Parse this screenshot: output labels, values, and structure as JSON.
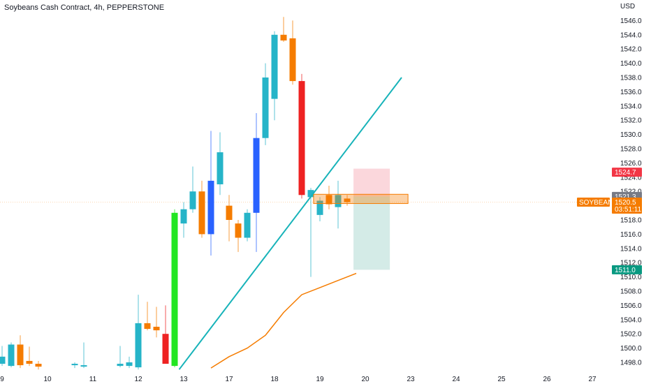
{
  "header": {
    "title": "Soybeans Cash Contract, 4h, PEPPERSTONE"
  },
  "price_axis": {
    "currency": "USD"
  },
  "symbol_tag": {
    "label": "SOYBEANS",
    "price": "1520.5",
    "countdown": "03:51:11"
  },
  "markers": {
    "stop_price": "1524.7",
    "entry_price": "1521.3",
    "target_price": "1511.0"
  },
  "colors": {
    "up": "#26b4c8",
    "down": "#f57c00",
    "impulse_up": "#22e622",
    "impulse_down": "#ee2222",
    "blue_up": "#2962ff",
    "trendline": "#17b3b9",
    "moving_average": "#f57c00",
    "stop_zone": "#fbd3d8",
    "target_zone": "#cfe9e4",
    "stop_tag": "#f23645",
    "target_tag": "#089981",
    "entry_tag": "#787b86"
  },
  "chart_data": {
    "type": "candlestick",
    "title": "Soybeans Cash Contract, 4h, PEPPERSTONE",
    "y_axis": {
      "label": "USD",
      "range": [
        1497,
        1547.5
      ],
      "ticks": [
        1498.0,
        1500.0,
        1502.0,
        1504.0,
        1506.0,
        1508.0,
        1510.0,
        1512.0,
        1514.0,
        1516.0,
        1518.0,
        1520.0,
        1522.0,
        1524.0,
        1526.0,
        1528.0,
        1530.0,
        1532.0,
        1534.0,
        1536.0,
        1538.0,
        1540.0,
        1542.0,
        1544.0,
        1546.0
      ]
    },
    "x_axis": {
      "bar_range": [
        0,
        67
      ],
      "ticks": [
        {
          "label": "9",
          "bar": 0
        },
        {
          "label": "10",
          "bar": 5
        },
        {
          "label": "11",
          "bar": 10
        },
        {
          "label": "12",
          "bar": 15
        },
        {
          "label": "13",
          "bar": 20
        },
        {
          "label": "17",
          "bar": 25
        },
        {
          "label": "18",
          "bar": 30
        },
        {
          "label": "19",
          "bar": 35
        },
        {
          "label": "20",
          "bar": 40
        },
        {
          "label": "23",
          "bar": 45
        },
        {
          "label": "24",
          "bar": 50
        },
        {
          "label": "25",
          "bar": 55
        },
        {
          "label": "26",
          "bar": 60
        },
        {
          "label": "27",
          "bar": 65
        }
      ]
    },
    "candles": [
      {
        "bar": 0,
        "o": 1497.8,
        "h": 1500.3,
        "l": 1497.5,
        "c": 1498.8
      },
      {
        "bar": 1,
        "o": 1497.5,
        "h": 1500.8,
        "l": 1497.3,
        "c": 1500.5
      },
      {
        "bar": 2,
        "o": 1500.5,
        "h": 1501.8,
        "l": 1497.2,
        "c": 1497.6,
        "dir": "down"
      },
      {
        "bar": 3,
        "o": 1498.2,
        "h": 1500.2,
        "l": 1497.5,
        "c": 1497.8,
        "dir": "down"
      },
      {
        "bar": 4,
        "o": 1497.8,
        "h": 1498.2,
        "l": 1497.0,
        "c": 1497.4
      },
      {
        "bar": 8,
        "o": 1497.6,
        "h": 1498.0,
        "l": 1497.2,
        "c": 1497.8
      },
      {
        "bar": 9,
        "o": 1497.4,
        "h": 1500.8,
        "l": 1497.2,
        "c": 1497.6
      },
      {
        "bar": 13,
        "o": 1497.5,
        "h": 1500.3,
        "l": 1497.3,
        "c": 1497.8
      },
      {
        "bar": 14,
        "o": 1497.5,
        "h": 1498.8,
        "l": 1497.2,
        "c": 1498.0
      },
      {
        "bar": 15,
        "o": 1497.3,
        "h": 1507.5,
        "l": 1497.0,
        "c": 1503.5
      },
      {
        "bar": 16,
        "o": 1503.5,
        "h": 1506.5,
        "l": 1502.5,
        "c": 1502.7,
        "dir": "down"
      },
      {
        "bar": 17,
        "o": 1503.0,
        "h": 1505.8,
        "l": 1501.5,
        "c": 1502.5,
        "dir": "down"
      },
      {
        "bar": 18,
        "o": 1502.0,
        "h": 1506.0,
        "l": 1498.0,
        "c": 1497.8,
        "dir": "impulse_down"
      },
      {
        "bar": 19,
        "o": 1497.5,
        "h": 1519.5,
        "l": 1497.3,
        "c": 1519.0,
        "dir": "impulse_up"
      },
      {
        "bar": 20,
        "o": 1517.5,
        "h": 1520.5,
        "l": 1515.5,
        "c": 1519.5
      },
      {
        "bar": 21,
        "o": 1519.5,
        "h": 1525.5,
        "l": 1519.0,
        "c": 1522.0
      },
      {
        "bar": 22,
        "o": 1522.0,
        "h": 1523.5,
        "l": 1515.5,
        "c": 1516.0,
        "dir": "down"
      },
      {
        "bar": 23,
        "o": 1516.0,
        "h": 1530.5,
        "l": 1513.0,
        "c": 1523.5,
        "dir": "blue_up"
      },
      {
        "bar": 24,
        "o": 1523.0,
        "h": 1530.3,
        "l": 1521.5,
        "c": 1527.5
      },
      {
        "bar": 25,
        "o": 1520.0,
        "h": 1521.5,
        "l": 1515.0,
        "c": 1518.0,
        "dir": "down"
      },
      {
        "bar": 26,
        "o": 1517.5,
        "h": 1518.0,
        "l": 1513.5,
        "c": 1515.5,
        "dir": "down"
      },
      {
        "bar": 27,
        "o": 1515.5,
        "h": 1519.5,
        "l": 1515.0,
        "c": 1519.0
      },
      {
        "bar": 28,
        "o": 1519.0,
        "h": 1533.0,
        "l": 1513.5,
        "c": 1529.5,
        "dir": "blue_up"
      },
      {
        "bar": 29,
        "o": 1529.5,
        "h": 1540.0,
        "l": 1528.5,
        "c": 1538.0
      },
      {
        "bar": 30,
        "o": 1535.0,
        "h": 1544.5,
        "l": 1532.0,
        "c": 1544.0
      },
      {
        "bar": 31,
        "o": 1544.0,
        "h": 1546.5,
        "l": 1543.0,
        "c": 1543.2,
        "dir": "down"
      },
      {
        "bar": 32,
        "o": 1543.5,
        "h": 1546.0,
        "l": 1537.0,
        "c": 1537.5,
        "dir": "down"
      },
      {
        "bar": 33,
        "o": 1537.5,
        "h": 1538.5,
        "l": 1521.0,
        "c": 1521.5,
        "dir": "impulse_down"
      },
      {
        "bar": 34,
        "o": 1521.2,
        "h": 1522.5,
        "l": 1510.0,
        "c": 1522.2
      },
      {
        "bar": 35,
        "o": 1518.7,
        "h": 1521.2,
        "l": 1517.8,
        "c": 1520.7
      },
      {
        "bar": 36,
        "o": 1521.5,
        "h": 1522.8,
        "l": 1519.5,
        "c": 1520.2,
        "dir": "down"
      },
      {
        "bar": 37,
        "o": 1519.8,
        "h": 1523.5,
        "l": 1516.8,
        "c": 1521.5
      },
      {
        "bar": 38,
        "o": 1521.0,
        "h": 1521.5,
        "l": 1520.0,
        "c": 1520.5,
        "dir": "down"
      }
    ],
    "trendline": {
      "x0": 19.5,
      "y0": 1497.0,
      "x1": 44,
      "y1": 1538.0
    },
    "moving_average": {
      "x": [
        23,
        25,
        27,
        29,
        31,
        33,
        35,
        37,
        39
      ],
      "y": [
        1497.2,
        1498.8,
        1500.0,
        1501.8,
        1505.0,
        1507.5,
        1508.5,
        1509.5,
        1510.5
      ]
    },
    "position": {
      "x_start": 38.7,
      "x_end": 42.7,
      "entry": 1521.3,
      "stop": 1524.7,
      "target": 1511.0,
      "stop_zone_top": 1525.2
    },
    "order_box": {
      "x_start": 34.3,
      "x_end": 44.7,
      "y_low": 1520.3,
      "y_high": 1521.6
    },
    "current_price": 1520.5
  }
}
